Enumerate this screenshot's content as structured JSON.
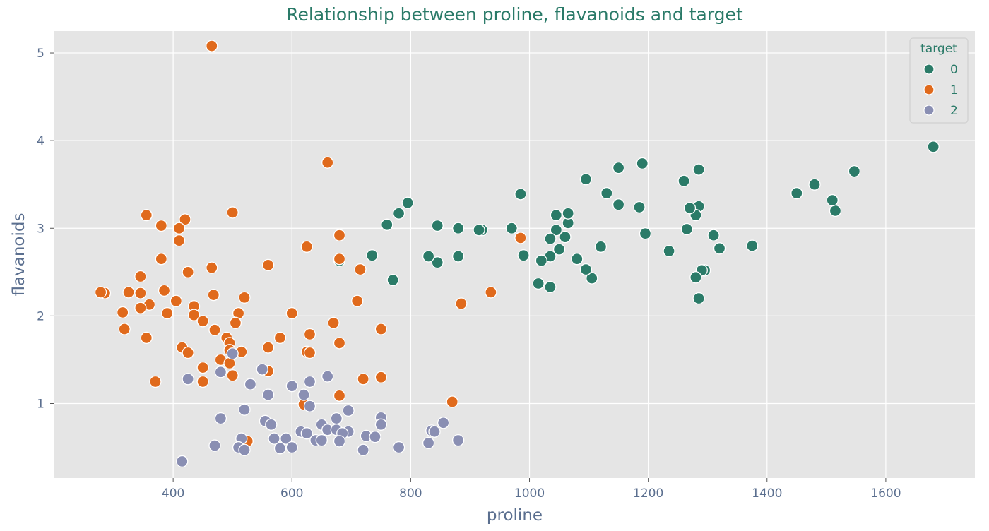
{
  "chart_data": {
    "type": "scatter",
    "title": "Relationship between proline, flavanoids and target",
    "xlabel": "proline",
    "ylabel": "flavanoids",
    "xlim": [
      200,
      1750
    ],
    "ylim": [
      0.15,
      5.25
    ],
    "x_ticks": [
      400,
      600,
      800,
      1000,
      1200,
      1400,
      1600
    ],
    "y_ticks": [
      1,
      2,
      3,
      4,
      5
    ],
    "grid": true,
    "background": "#e5e5e5",
    "legend_title": "target",
    "legend_position": "top-right",
    "series": [
      {
        "name": "0",
        "color": "#2b7b68",
        "points": [
          [
            1680,
            3.93
          ],
          [
            1547,
            3.65
          ],
          [
            1515,
            3.2
          ],
          [
            1510,
            3.32
          ],
          [
            1480,
            3.5
          ],
          [
            1450,
            3.4
          ],
          [
            1375,
            2.8
          ],
          [
            1320,
            2.77
          ],
          [
            1310,
            2.92
          ],
          [
            1295,
            2.52
          ],
          [
            1290,
            2.52
          ],
          [
            1285,
            2.2
          ],
          [
            1285,
            3.25
          ],
          [
            1285,
            3.67
          ],
          [
            1280,
            3.15
          ],
          [
            1280,
            2.44
          ],
          [
            1270,
            3.23
          ],
          [
            1265,
            2.99
          ],
          [
            1260,
            3.54
          ],
          [
            1235,
            2.74
          ],
          [
            1195,
            2.94
          ],
          [
            1190,
            3.74
          ],
          [
            1185,
            3.24
          ],
          [
            1150,
            3.27
          ],
          [
            1150,
            3.69
          ],
          [
            1130,
            3.4
          ],
          [
            1120,
            2.79
          ],
          [
            1105,
            2.43
          ],
          [
            1095,
            2.53
          ],
          [
            1095,
            3.56
          ],
          [
            1080,
            2.65
          ],
          [
            1065,
            3.06
          ],
          [
            1065,
            3.17
          ],
          [
            1060,
            2.9
          ],
          [
            1050,
            2.76
          ],
          [
            1045,
            2.98
          ],
          [
            1045,
            3.15
          ],
          [
            1035,
            2.88
          ],
          [
            1035,
            2.68
          ],
          [
            1035,
            2.33
          ],
          [
            1020,
            2.63
          ],
          [
            1015,
            2.37
          ],
          [
            990,
            2.69
          ],
          [
            985,
            3.39
          ],
          [
            970,
            3.0
          ],
          [
            920,
            2.98
          ],
          [
            915,
            2.98
          ],
          [
            880,
            2.68
          ],
          [
            880,
            3.0
          ],
          [
            845,
            2.61
          ],
          [
            845,
            3.03
          ],
          [
            830,
            2.68
          ],
          [
            795,
            3.29
          ],
          [
            780,
            3.17
          ],
          [
            770,
            2.41
          ],
          [
            760,
            3.04
          ],
          [
            735,
            2.69
          ],
          [
            680,
            2.63
          ]
        ]
      },
      {
        "name": "1",
        "color": "#e06a1c",
        "points": [
          [
            465,
            5.08
          ],
          [
            660,
            3.75
          ],
          [
            355,
            3.15
          ],
          [
            420,
            3.1
          ],
          [
            500,
            3.18
          ],
          [
            380,
            3.03
          ],
          [
            410,
            3.0
          ],
          [
            410,
            2.86
          ],
          [
            680,
            2.92
          ],
          [
            985,
            2.89
          ],
          [
            625,
            2.79
          ],
          [
            380,
            2.65
          ],
          [
            680,
            2.65
          ],
          [
            465,
            2.55
          ],
          [
            560,
            2.58
          ],
          [
            715,
            2.53
          ],
          [
            425,
            2.5
          ],
          [
            345,
            2.45
          ],
          [
            385,
            2.29
          ],
          [
            345,
            2.26
          ],
          [
            325,
            2.27
          ],
          [
            285,
            2.26
          ],
          [
            278,
            2.27
          ],
          [
            468,
            2.24
          ],
          [
            520,
            2.21
          ],
          [
            935,
            2.27
          ],
          [
            710,
            2.17
          ],
          [
            405,
            2.17
          ],
          [
            360,
            2.13
          ],
          [
            435,
            2.11
          ],
          [
            345,
            2.09
          ],
          [
            885,
            2.14
          ],
          [
            315,
            2.04
          ],
          [
            390,
            2.03
          ],
          [
            435,
            2.01
          ],
          [
            510,
            2.03
          ],
          [
            600,
            2.03
          ],
          [
            450,
            1.94
          ],
          [
            505,
            1.92
          ],
          [
            670,
            1.92
          ],
          [
            318,
            1.85
          ],
          [
            470,
            1.84
          ],
          [
            750,
            1.85
          ],
          [
            630,
            1.79
          ],
          [
            355,
            1.75
          ],
          [
            490,
            1.75
          ],
          [
            580,
            1.75
          ],
          [
            495,
            1.69
          ],
          [
            680,
            1.69
          ],
          [
            415,
            1.64
          ],
          [
            560,
            1.64
          ],
          [
            495,
            1.61
          ],
          [
            515,
            1.59
          ],
          [
            425,
            1.58
          ],
          [
            625,
            1.59
          ],
          [
            630,
            1.58
          ],
          [
            480,
            1.5
          ],
          [
            495,
            1.46
          ],
          [
            450,
            1.41
          ],
          [
            560,
            1.37
          ],
          [
            500,
            1.32
          ],
          [
            720,
            1.28
          ],
          [
            750,
            1.3
          ],
          [
            370,
            1.25
          ],
          [
            450,
            1.25
          ],
          [
            680,
            1.09
          ],
          [
            870,
            1.02
          ],
          [
            620,
            0.99
          ],
          [
            525,
            0.57
          ]
        ]
      },
      {
        "name": "2",
        "color": "#8a8fb3",
        "points": [
          [
            500,
            1.57
          ],
          [
            550,
            1.39
          ],
          [
            480,
            1.36
          ],
          [
            660,
            1.31
          ],
          [
            425,
            1.28
          ],
          [
            630,
            1.25
          ],
          [
            530,
            1.22
          ],
          [
            600,
            1.2
          ],
          [
            560,
            1.1
          ],
          [
            620,
            1.1
          ],
          [
            630,
            0.97
          ],
          [
            695,
            0.92
          ],
          [
            520,
            0.93
          ],
          [
            480,
            0.83
          ],
          [
            675,
            0.83
          ],
          [
            750,
            0.84
          ],
          [
            555,
            0.8
          ],
          [
            855,
            0.78
          ],
          [
            565,
            0.76
          ],
          [
            650,
            0.76
          ],
          [
            750,
            0.76
          ],
          [
            660,
            0.7
          ],
          [
            675,
            0.7
          ],
          [
            695,
            0.68
          ],
          [
            615,
            0.68
          ],
          [
            625,
            0.66
          ],
          [
            685,
            0.66
          ],
          [
            835,
            0.69
          ],
          [
            840,
            0.68
          ],
          [
            725,
            0.63
          ],
          [
            740,
            0.62
          ],
          [
            515,
            0.6
          ],
          [
            570,
            0.6
          ],
          [
            590,
            0.6
          ],
          [
            640,
            0.58
          ],
          [
            650,
            0.58
          ],
          [
            880,
            0.58
          ],
          [
            680,
            0.57
          ],
          [
            830,
            0.55
          ],
          [
            470,
            0.52
          ],
          [
            580,
            0.49
          ],
          [
            600,
            0.5
          ],
          [
            780,
            0.5
          ],
          [
            510,
            0.5
          ],
          [
            520,
            0.47
          ],
          [
            720,
            0.47
          ],
          [
            415,
            0.34
          ]
        ]
      }
    ]
  }
}
